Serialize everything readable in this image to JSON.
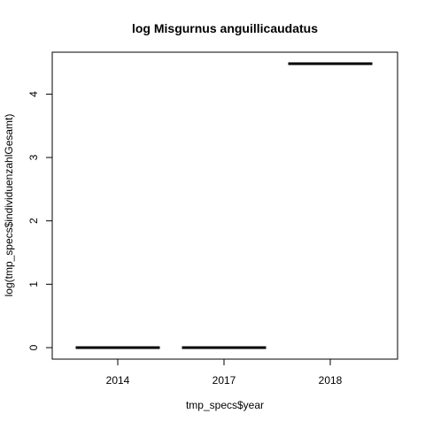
{
  "chart_data": {
    "type": "bar",
    "title": "log Misgurnus anguillicaudatus",
    "xlabel": "tmp_specs$year",
    "ylabel": "log(tmp_specs$individuenzahlGesamt)",
    "categories": [
      "2014",
      "2017",
      "2018"
    ],
    "values": [
      0,
      0,
      4.48
    ],
    "y_ticks": [
      "0",
      "1",
      "2",
      "3",
      "4"
    ],
    "ylim": [
      0,
      4.48
    ],
    "grid": false,
    "legend": "none",
    "colors": {
      "mark": "#000000",
      "axis": "#000000",
      "background": "#ffffff"
    }
  }
}
